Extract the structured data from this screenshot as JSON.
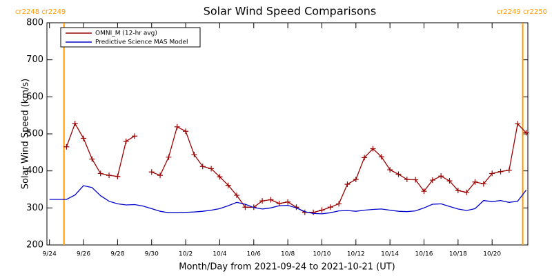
{
  "chart_data": {
    "type": "line",
    "title": "Solar Wind Speed Comparisons",
    "x_label": "Month/Day from 2021-09-24 to 2021-10-21 (UT)",
    "y_label": "Solar Wind Speed (km/s)",
    "xlim": [
      -0.15,
      28.1
    ],
    "xticks": [
      {
        "value": 0,
        "label": "9/24"
      },
      {
        "value": 2,
        "label": "9/26"
      },
      {
        "value": 4,
        "label": "9/28"
      },
      {
        "value": 6,
        "label": "9/30"
      },
      {
        "value": 8,
        "label": "10/2"
      },
      {
        "value": 10,
        "label": "10/4"
      },
      {
        "value": 12,
        "label": "10/6"
      },
      {
        "value": 14,
        "label": "10/8"
      },
      {
        "value": 16,
        "label": "10/10"
      },
      {
        "value": 18,
        "label": "10/12"
      },
      {
        "value": 20,
        "label": "10/14"
      },
      {
        "value": 22,
        "label": "10/16"
      },
      {
        "value": 24,
        "label": "10/18"
      },
      {
        "value": 26,
        "label": "10/20"
      }
    ],
    "ylim": [
      200,
      800
    ],
    "yticks": [
      200,
      300,
      400,
      500,
      600,
      700,
      800
    ],
    "legend": "upper left",
    "rotation_boundaries": [
      {
        "x": 0.85,
        "label": "cr2248 cr2249"
      },
      {
        "x": 27.8,
        "label": "cr2249 cr2250"
      }
    ],
    "boundary_color": "#ff9900",
    "series": [
      {
        "name": "OMNI_M (12-hr avg)",
        "color": "#990000",
        "marker": "+",
        "x": [
          1.0,
          1.5,
          2.0,
          2.5,
          3.0,
          3.5,
          4.0,
          4.5,
          5.0,
          5.5,
          6.0,
          6.5,
          7.0,
          7.5,
          8.0,
          8.5,
          9.0,
          9.5,
          10.0,
          10.5,
          11.0,
          11.5,
          12.0,
          12.5,
          13.0,
          13.5,
          14.0,
          14.5,
          15.0,
          15.5,
          16.0,
          16.5,
          17.0,
          17.5,
          18.0,
          18.5,
          19.0,
          19.5,
          20.0,
          20.5,
          21.0,
          21.5,
          22.0,
          22.5,
          23.0,
          23.5,
          24.0,
          24.5,
          25.0,
          25.5,
          26.0,
          26.5,
          27.0,
          27.5,
          28.0
        ],
        "values": [
          465,
          528,
          488,
          432,
          393,
          388,
          385,
          480,
          494,
          null,
          397,
          388,
          437,
          519,
          507,
          444,
          412,
          406,
          384,
          361,
          334,
          302,
          302,
          319,
          322,
          312,
          316,
          302,
          288,
          288,
          294,
          302,
          311,
          364,
          377,
          436,
          460,
          438,
          403,
          391,
          377,
          376,
          345,
          375,
          386,
          373,
          347,
          342,
          370,
          365,
          393,
          398,
          402,
          527,
          503
        ]
      },
      {
        "name": "Predictive Science MAS Model",
        "color": "#0000cc",
        "marker": null,
        "x": [
          0,
          0.5,
          1.0,
          1.5,
          2.0,
          2.5,
          3.0,
          3.5,
          4.0,
          4.5,
          5.0,
          5.5,
          6.0,
          6.5,
          7.0,
          7.5,
          8.0,
          8.5,
          9.0,
          9.5,
          10.0,
          10.5,
          11.0,
          11.5,
          12.0,
          12.5,
          13.0,
          13.5,
          14.0,
          14.5,
          15.0,
          15.5,
          16.0,
          16.5,
          17.0,
          17.5,
          18.0,
          18.5,
          19.0,
          19.5,
          20.0,
          20.5,
          21.0,
          21.5,
          22.0,
          22.5,
          23.0,
          23.5,
          24.0,
          24.5,
          25.0,
          25.5,
          26.0,
          26.5,
          27.0,
          27.5,
          28.0
        ],
        "values": [
          323,
          323,
          323,
          335,
          360,
          355,
          333,
          318,
          311,
          308,
          309,
          305,
          298,
          291,
          287,
          287,
          288,
          289,
          291,
          294,
          298,
          306,
          315,
          310,
          301,
          297,
          300,
          306,
          307,
          300,
          290,
          285,
          284,
          287,
          292,
          293,
          291,
          294,
          296,
          297,
          294,
          291,
          290,
          292,
          300,
          310,
          311,
          304,
          297,
          293,
          298,
          320,
          317,
          320,
          315,
          318,
          348
        ]
      }
    ]
  }
}
